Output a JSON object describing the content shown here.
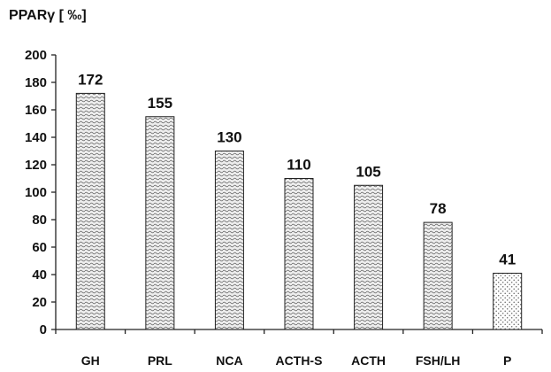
{
  "chart_data": {
    "type": "bar",
    "ylabel": "PPARγ [ ‰]",
    "xlabel": "",
    "ylim": [
      0,
      200
    ],
    "yticks": [
      "0",
      "20",
      "40",
      "60",
      "80",
      "100",
      "120",
      "140",
      "160",
      "180",
      "200"
    ],
    "categories": [
      "GH",
      "PRL",
      "NCA",
      "ACTH-S",
      "ACTH",
      "FSH/LH",
      "P"
    ],
    "values": [
      172,
      155,
      130,
      110,
      105,
      78,
      41
    ],
    "data_labels": [
      "172",
      "155",
      "130",
      "110",
      "105",
      "78",
      "41"
    ],
    "bar_fill_patterns": [
      "wavy",
      "wavy",
      "wavy",
      "wavy",
      "wavy",
      "wavy",
      "dotted"
    ],
    "grid": false,
    "legend": "none"
  }
}
